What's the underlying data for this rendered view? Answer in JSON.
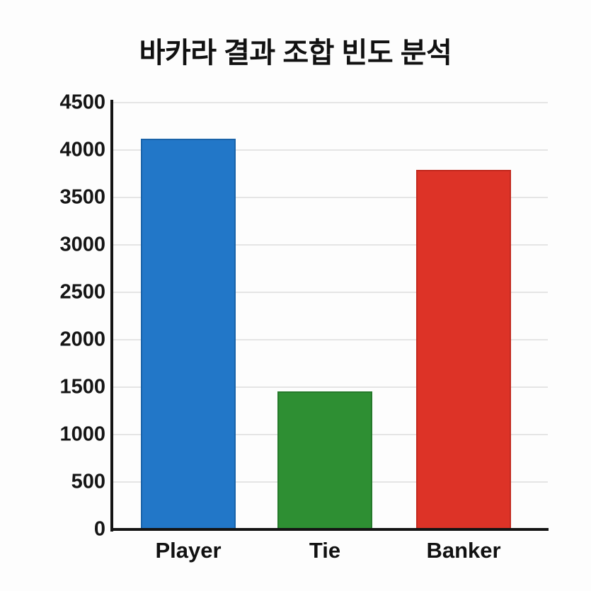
{
  "chart": {
    "title": "바카라 결과 조합 빈도 분석"
  },
  "chart_data": {
    "type": "bar",
    "title": "바카라 결과 조합 빈도 분석",
    "categories": [
      "Player",
      "Tie",
      "Banker"
    ],
    "values": [
      4120,
      1455,
      3790
    ],
    "bar_colors": [
      "#2277c8",
      "#2e8f33",
      "#dd3327"
    ],
    "bar_border_colors": [
      "#1a63a9",
      "#257a2b",
      "#c32a1f"
    ],
    "xlabel": "",
    "ylabel": "",
    "ylim": [
      0,
      4500
    ],
    "yticks": [
      0,
      500,
      1000,
      1500,
      2000,
      2500,
      3000,
      3500,
      4000,
      4500
    ],
    "grid": true,
    "legend": false
  },
  "colors": {
    "background": "#fdfdfd",
    "axis": "#141414",
    "gridline": "#e5e5e5",
    "text": "#111111"
  }
}
